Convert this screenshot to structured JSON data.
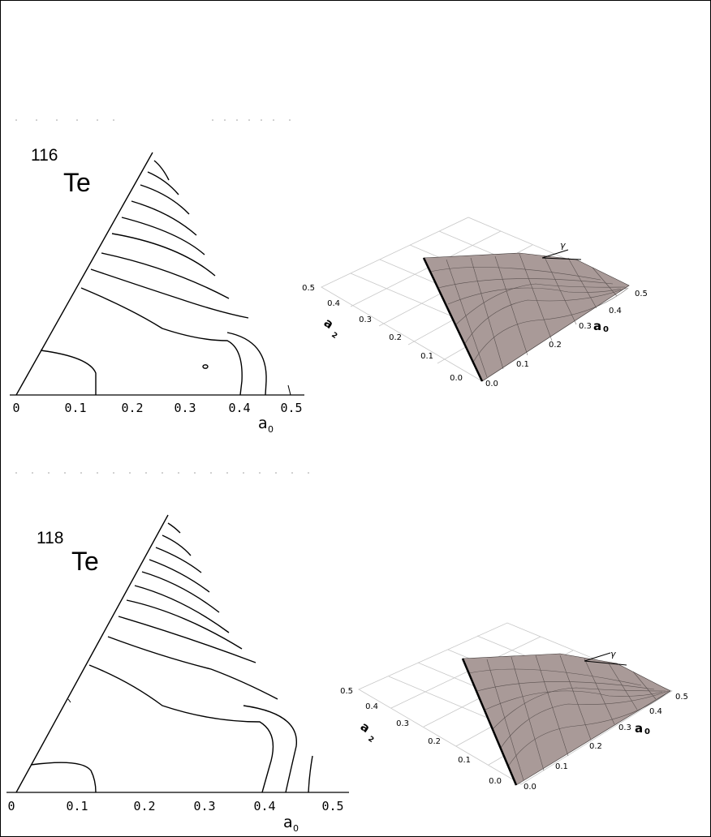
{
  "panels": [
    {
      "nucleus_mass": "116",
      "nucleus_symbol": "Te",
      "contour": {
        "x_ticks": [
          "0",
          "0.1",
          "0.2",
          "0.3",
          "0.4",
          "0.5"
        ],
        "x_label": "a",
        "x_label_sub": "0"
      },
      "surface": {
        "a2_ticks": [
          "0.0",
          "0.1",
          "0.2",
          "0.3",
          "0.4",
          "0.5"
        ],
        "a0_ticks": [
          "0.0",
          "0.1",
          "0.2",
          "0.3",
          "0.4",
          "0.5"
        ],
        "a2_label": "a",
        "a2_label_sub": "2",
        "a0_label": "a",
        "a0_label_sub": "0",
        "gamma_label": "γ"
      }
    },
    {
      "nucleus_mass": "118",
      "nucleus_symbol": "Te",
      "contour": {
        "x_ticks": [
          "0",
          "0.1",
          "0.2",
          "0.3",
          "0.4",
          "0.5"
        ],
        "x_label": "a",
        "x_label_sub": "0"
      },
      "surface": {
        "a2_ticks": [
          "0.0",
          "0.1",
          "0.2",
          "0.3",
          "0.4",
          "0.5"
        ],
        "a0_ticks": [
          "0.0",
          "0.1",
          "0.2",
          "0.3",
          "0.4",
          "0.5"
        ],
        "a2_label": "a",
        "a2_label_sub": "2",
        "a0_label": "a",
        "a0_label_sub": "0",
        "gamma_label": "γ"
      }
    }
  ],
  "colors": {
    "line": "#000000",
    "grid": "#c8c8c8",
    "surface_fill": "#a99a98",
    "surface_mesh": "#3a3332"
  }
}
